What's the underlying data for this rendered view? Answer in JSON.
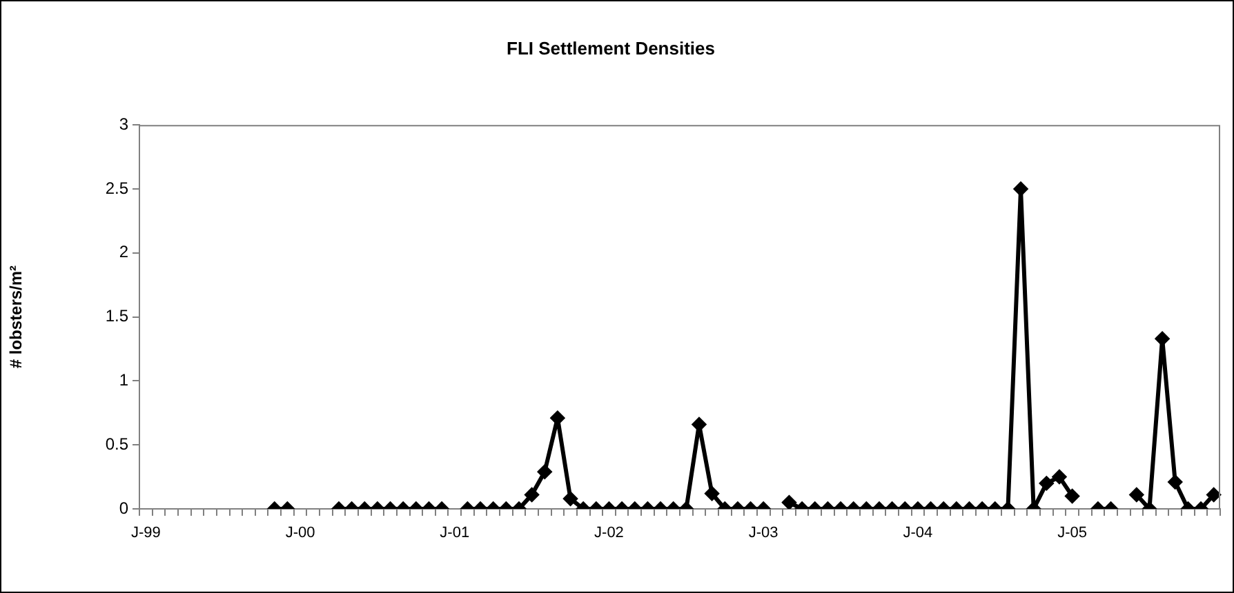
{
  "chart_data": {
    "type": "line",
    "title": "FLI Settlement Densities",
    "ylabel": "# lobsters/m²",
    "categories": [
      "J-99",
      null,
      null,
      null,
      null,
      null,
      null,
      null,
      null,
      null,
      null,
      null,
      "J-00",
      null,
      null,
      null,
      null,
      null,
      null,
      null,
      null,
      null,
      null,
      null,
      "J-01",
      null,
      null,
      null,
      null,
      null,
      null,
      null,
      null,
      null,
      null,
      null,
      "J-02",
      null,
      null,
      null,
      null,
      null,
      null,
      null,
      null,
      null,
      null,
      null,
      "J-03",
      null,
      null,
      null,
      null,
      null,
      null,
      null,
      null,
      null,
      null,
      null,
      "J-04",
      null,
      null,
      null,
      null,
      null,
      null,
      null,
      null,
      null,
      null,
      null,
      "J-05",
      null,
      null,
      null,
      null,
      null,
      null,
      null,
      null,
      null,
      null,
      null
    ],
    "values": [
      null,
      null,
      null,
      null,
      null,
      null,
      null,
      null,
      null,
      null,
      0,
      0,
      null,
      null,
      null,
      0,
      0,
      0,
      0,
      0,
      0,
      0,
      0,
      0,
      null,
      0,
      0,
      0,
      0,
      0,
      0.11,
      0.29,
      0.71,
      0.08,
      0,
      0,
      0,
      0,
      0,
      0,
      0,
      0,
      0,
      0.66,
      0.12,
      0,
      0,
      0,
      0,
      null,
      0.05,
      0,
      0,
      0,
      0,
      0,
      0,
      0,
      0,
      0,
      0,
      0,
      0,
      0,
      0,
      0,
      0,
      0,
      2.5,
      0,
      0.2,
      0.25,
      0.1,
      null,
      0,
      0,
      null,
      0.11,
      0,
      1.33,
      0.21,
      0,
      0,
      0.11
    ],
    "color": "#000000",
    "marker": "diamond",
    "line_style": "solid",
    "ylim": [
      0,
      3
    ],
    "yticks": [
      0,
      0.5,
      1,
      1.5,
      2,
      2.5,
      3
    ]
  }
}
